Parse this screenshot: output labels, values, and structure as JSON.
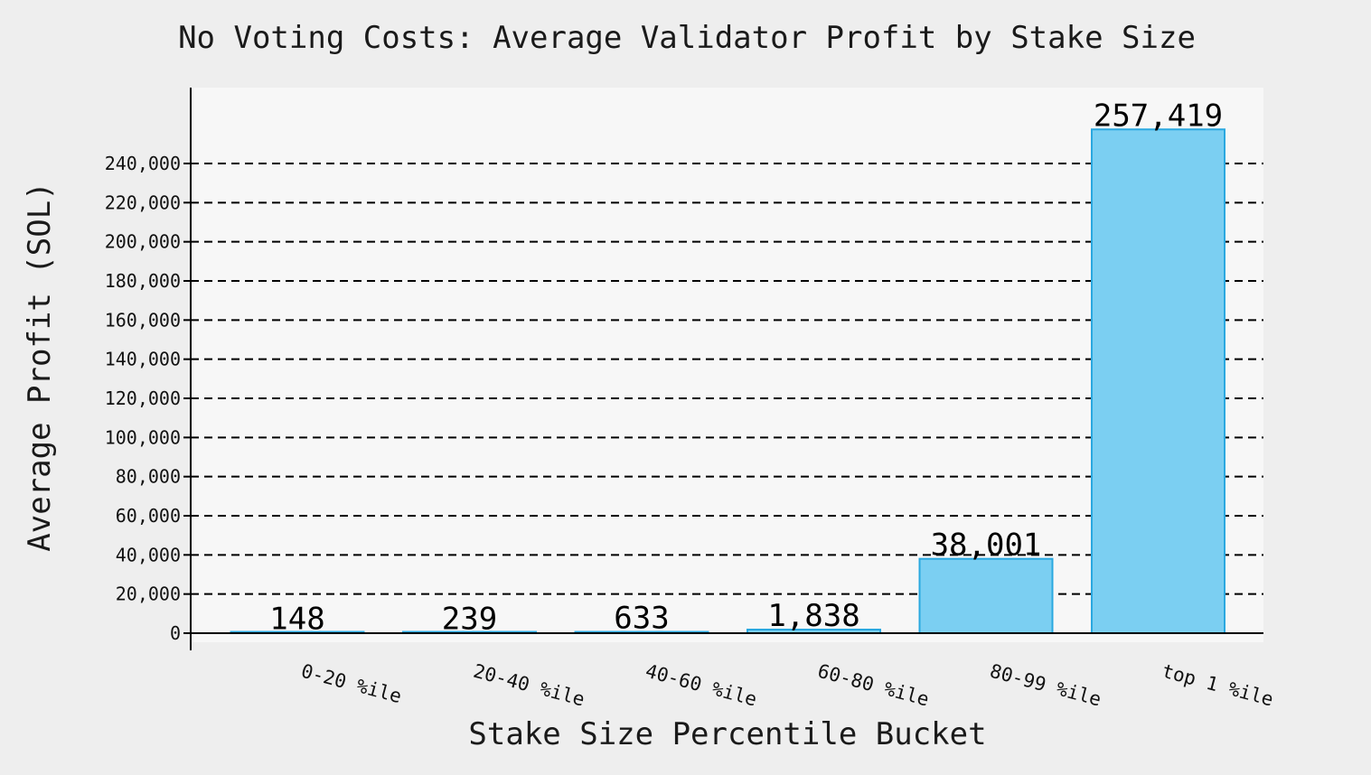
{
  "chart_data": {
    "type": "bar",
    "title": "No Voting Costs: Average Validator Profit by Stake Size",
    "xlabel": "Stake Size Percentile Bucket",
    "ylabel": "Average Profit (SOL)",
    "categories": [
      "0-20 %ile",
      "20-40 %ile",
      "40-60 %ile",
      "60-80 %ile",
      "80-99 %ile",
      "top 1 %ile"
    ],
    "values": [
      148,
      239,
      633,
      1838,
      38001,
      257419
    ],
    "value_labels": [
      "148",
      "239",
      "633",
      "1,838",
      "38,001",
      "257,419"
    ],
    "yticks": [
      0,
      20000,
      40000,
      60000,
      80000,
      100000,
      120000,
      140000,
      160000,
      180000,
      200000,
      220000,
      240000
    ],
    "ytick_labels": [
      "0",
      "20,000",
      "40,000",
      "60,000",
      "80,000",
      "100,000",
      "120,000",
      "140,000",
      "160,000",
      "180,000",
      "200,000",
      "220,000",
      "240,000"
    ],
    "ylim": [
      0,
      279000
    ],
    "grid": "horizontal dashed",
    "legend": "none",
    "bar_fill": "#7bcff2",
    "bar_edge": "#2aa8e0",
    "plot_background": "#f7f7f7",
    "page_background": "#eeeeee"
  }
}
